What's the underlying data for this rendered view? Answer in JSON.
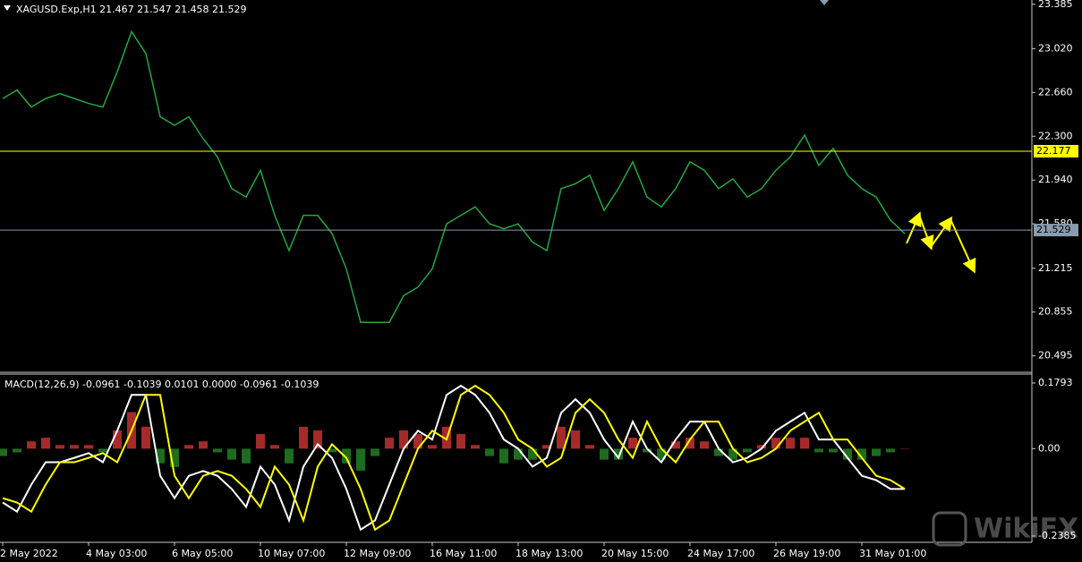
{
  "chart_data": [
    {
      "type": "price",
      "title": "XAGUSD.Exp,H1  21.467 21.547 21.458 21.529",
      "values": [
        22.61,
        22.68,
        22.54,
        22.61,
        22.65,
        22.61,
        22.57,
        22.54,
        22.83,
        23.16,
        22.98,
        22.46,
        22.39,
        22.46,
        22.28,
        22.13,
        21.87,
        21.8,
        22.02,
        21.65,
        21.36,
        21.65,
        21.65,
        21.5,
        21.21,
        20.77,
        20.77,
        20.77,
        20.99,
        21.06,
        21.21,
        21.58,
        21.65,
        21.72,
        21.58,
        21.54,
        21.58,
        21.43,
        21.36,
        21.87,
        21.91,
        21.98,
        21.69,
        21.87,
        22.09,
        21.8,
        21.72,
        21.87,
        22.09,
        22.02,
        21.87,
        21.95,
        21.8,
        21.87,
        22.02,
        22.13,
        22.31,
        22.06,
        22.2,
        21.98,
        21.87,
        21.8,
        21.61,
        21.5
      ],
      "color": "#26a641",
      "ylim": [
        20.36,
        23.42
      ],
      "yticks": [
        23.385,
        {
          "value": 23.02,
          "label": "23.020"
        },
        {
          "value": 22.66,
          "label": "22.660"
        },
        {
          "value": 22.3,
          "label": "22.300"
        },
        {
          "value": 21.94,
          "label": "21.940"
        },
        {
          "value": 21.58,
          "label": "21.580"
        },
        21.215,
        20.855,
        20.495
      ],
      "levels": [
        {
          "value": 22.177,
          "color": "#ffff00"
        },
        {
          "value": 21.529,
          "color": "#8a9bb0"
        }
      ]
    },
    {
      "type": "macd",
      "title": "MACD(12,26,9) -0.0961 -0.1039 0.0101 0.0000 -0.0961 -0.1039",
      "categories": [
        "2 May 2022",
        null,
        null,
        null,
        null,
        null,
        "4 May 03:00",
        null,
        null,
        null,
        null,
        null,
        "6 May 05:00",
        null,
        null,
        null,
        null,
        null,
        "10 May 07:00",
        null,
        null,
        null,
        null,
        null,
        "12 May 09:00",
        null,
        null,
        null,
        null,
        null,
        "16 May 11:00",
        null,
        null,
        null,
        null,
        null,
        "18 May 13:00",
        null,
        null,
        null,
        null,
        null,
        "20 May 15:00",
        null,
        null,
        null,
        null,
        null,
        "24 May 17:00",
        null,
        null,
        null,
        null,
        null,
        "26 May 19:00",
        null,
        null,
        null,
        null,
        null,
        "31 May 01:00",
        null,
        null,
        null
      ],
      "series": [
        {
          "color": "#ffffff",
          "values": [
            -0.147,
            -0.172,
            -0.098,
            -0.037,
            -0.037,
            -0.025,
            -0.012,
            -0.037,
            0.049,
            0.147,
            0.147,
            -0.074,
            -0.135,
            -0.074,
            -0.061,
            -0.074,
            -0.11,
            -0.159,
            -0.049,
            -0.098,
            -0.196,
            -0.049,
            0.012,
            -0.025,
            -0.11,
            -0.221,
            -0.196,
            -0.098,
            0,
            0.049,
            0.025,
            0.147,
            0.172,
            0.147,
            0.098,
            0.025,
            0,
            -0.049,
            -0.025,
            0.098,
            0.135,
            0.098,
            0.025,
            -0.025,
            0.074,
            0,
            -0.037,
            0.025,
            0.074,
            0.074,
            0,
            -0.037,
            -0.025,
            0,
            0.049,
            0.074,
            0.098,
            0.025,
            0.025,
            -0.025,
            -0.074,
            -0.086,
            -0.11,
            -0.11
          ]
        },
        {
          "color": "#ffff00",
          "values": [
            -0.135,
            -0.147,
            -0.172,
            -0.098,
            -0.037,
            -0.037,
            -0.025,
            -0.012,
            -0.037,
            0.049,
            0.147,
            0.147,
            -0.074,
            -0.135,
            -0.074,
            -0.061,
            -0.074,
            -0.11,
            -0.159,
            -0.049,
            -0.098,
            -0.196,
            -0.049,
            0.012,
            -0.025,
            -0.11,
            -0.221,
            -0.196,
            -0.098,
            0,
            0.049,
            0.025,
            0.147,
            0.172,
            0.147,
            0.098,
            0.025,
            0,
            -0.049,
            -0.025,
            0.098,
            0.135,
            0.098,
            0.025,
            -0.025,
            0.074,
            0,
            -0.037,
            0.025,
            0.074,
            0.074,
            0,
            -0.037,
            -0.025,
            0,
            0.049,
            0.074,
            0.098,
            0.025,
            0.025,
            -0.025,
            -0.074,
            -0.086,
            -0.11
          ]
        }
      ],
      "histogram": {
        "up_color": "#a52a2a",
        "down_color": "#1f6b1f",
        "values": [
          -0.02,
          -0.01,
          0.02,
          0.03,
          0.01,
          0.01,
          0.01,
          -0.01,
          0.05,
          0.1,
          0.06,
          -0.04,
          -0.05,
          0.01,
          0.02,
          -0.01,
          -0.03,
          -0.04,
          0.04,
          0.01,
          -0.04,
          0.06,
          0.05,
          -0.01,
          -0.04,
          -0.06,
          -0.02,
          0.03,
          0.05,
          0.04,
          0.01,
          0.06,
          0.04,
          0.01,
          -0.02,
          -0.04,
          -0.03,
          -0.03,
          0.01,
          0.06,
          0.05,
          0.01,
          -0.03,
          -0.03,
          0.03,
          -0.01,
          -0.03,
          0.02,
          0.03,
          0.02,
          -0.02,
          -0.03,
          -0.01,
          0.01,
          0.03,
          0.03,
          0.03,
          -0.01,
          -0.01,
          -0.03,
          -0.03,
          -0.02,
          -0.01,
          0.0
        ]
      },
      "ylim": [
        -0.2557,
        0.2038
      ],
      "yticks": [
        0.1793,
        {
          "value": 0,
          "label": "0.00"
        },
        -0.2385
      ]
    }
  ],
  "watermark": "WikiFX"
}
